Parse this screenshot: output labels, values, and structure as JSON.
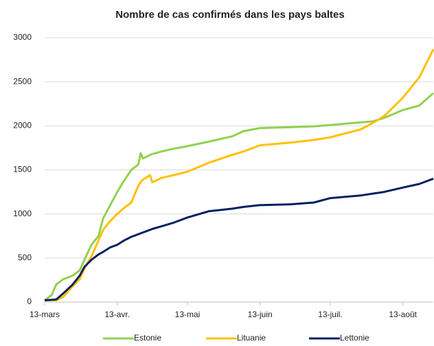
{
  "chart_data": {
    "type": "line",
    "title": "Nombre de cas confirmés dans les pays baltes",
    "x": [
      0,
      3,
      5,
      8,
      10,
      12,
      15,
      17,
      20,
      23,
      25,
      28,
      31,
      34,
      37,
      40,
      41,
      42,
      45,
      46,
      50,
      55,
      61,
      70,
      80,
      85,
      92,
      105,
      115,
      122,
      135,
      140,
      145,
      153,
      160,
      166
    ],
    "xlim": [
      0,
      166
    ],
    "xticks": [
      {
        "value": 0,
        "label": "13-mars"
      },
      {
        "value": 31,
        "label": "13-avr."
      },
      {
        "value": 61,
        "label": "13-mai"
      },
      {
        "value": 92,
        "label": "13-juin"
      },
      {
        "value": 122,
        "label": "13-juil."
      },
      {
        "value": 153,
        "label": "13-août"
      }
    ],
    "ylim": [
      0,
      3000
    ],
    "yticks": [
      0,
      500,
      1000,
      1500,
      2000,
      2500,
      3000
    ],
    "grid": true,
    "legend": "bottom",
    "series": [
      {
        "name": "Estonie",
        "color": "#92d050",
        "values": [
          20,
          80,
          200,
          260,
          280,
          300,
          360,
          480,
          650,
          750,
          950,
          1100,
          1250,
          1380,
          1500,
          1560,
          1690,
          1630,
          1670,
          1680,
          1710,
          1740,
          1770,
          1820,
          1880,
          1940,
          1975,
          1985,
          1995,
          2010,
          2040,
          2050,
          2090,
          2180,
          2230,
          2370
        ]
      },
      {
        "name": "Lituanie",
        "color": "#ffc000",
        "values": [
          20,
          20,
          20,
          60,
          120,
          180,
          260,
          380,
          520,
          700,
          820,
          920,
          1000,
          1070,
          1130,
          1320,
          1360,
          1390,
          1440,
          1360,
          1410,
          1440,
          1480,
          1580,
          1670,
          1710,
          1780,
          1810,
          1840,
          1870,
          1960,
          2030,
          2110,
          2320,
          2550,
          2870
        ]
      },
      {
        "name": "Lettonie",
        "color": "#002060",
        "values": [
          20,
          25,
          30,
          100,
          150,
          200,
          300,
          400,
          480,
          540,
          570,
          620,
          650,
          700,
          740,
          770,
          780,
          790,
          820,
          830,
          860,
          900,
          960,
          1030,
          1060,
          1080,
          1100,
          1110,
          1130,
          1180,
          1210,
          1230,
          1250,
          1300,
          1340,
          1400
        ]
      }
    ]
  }
}
